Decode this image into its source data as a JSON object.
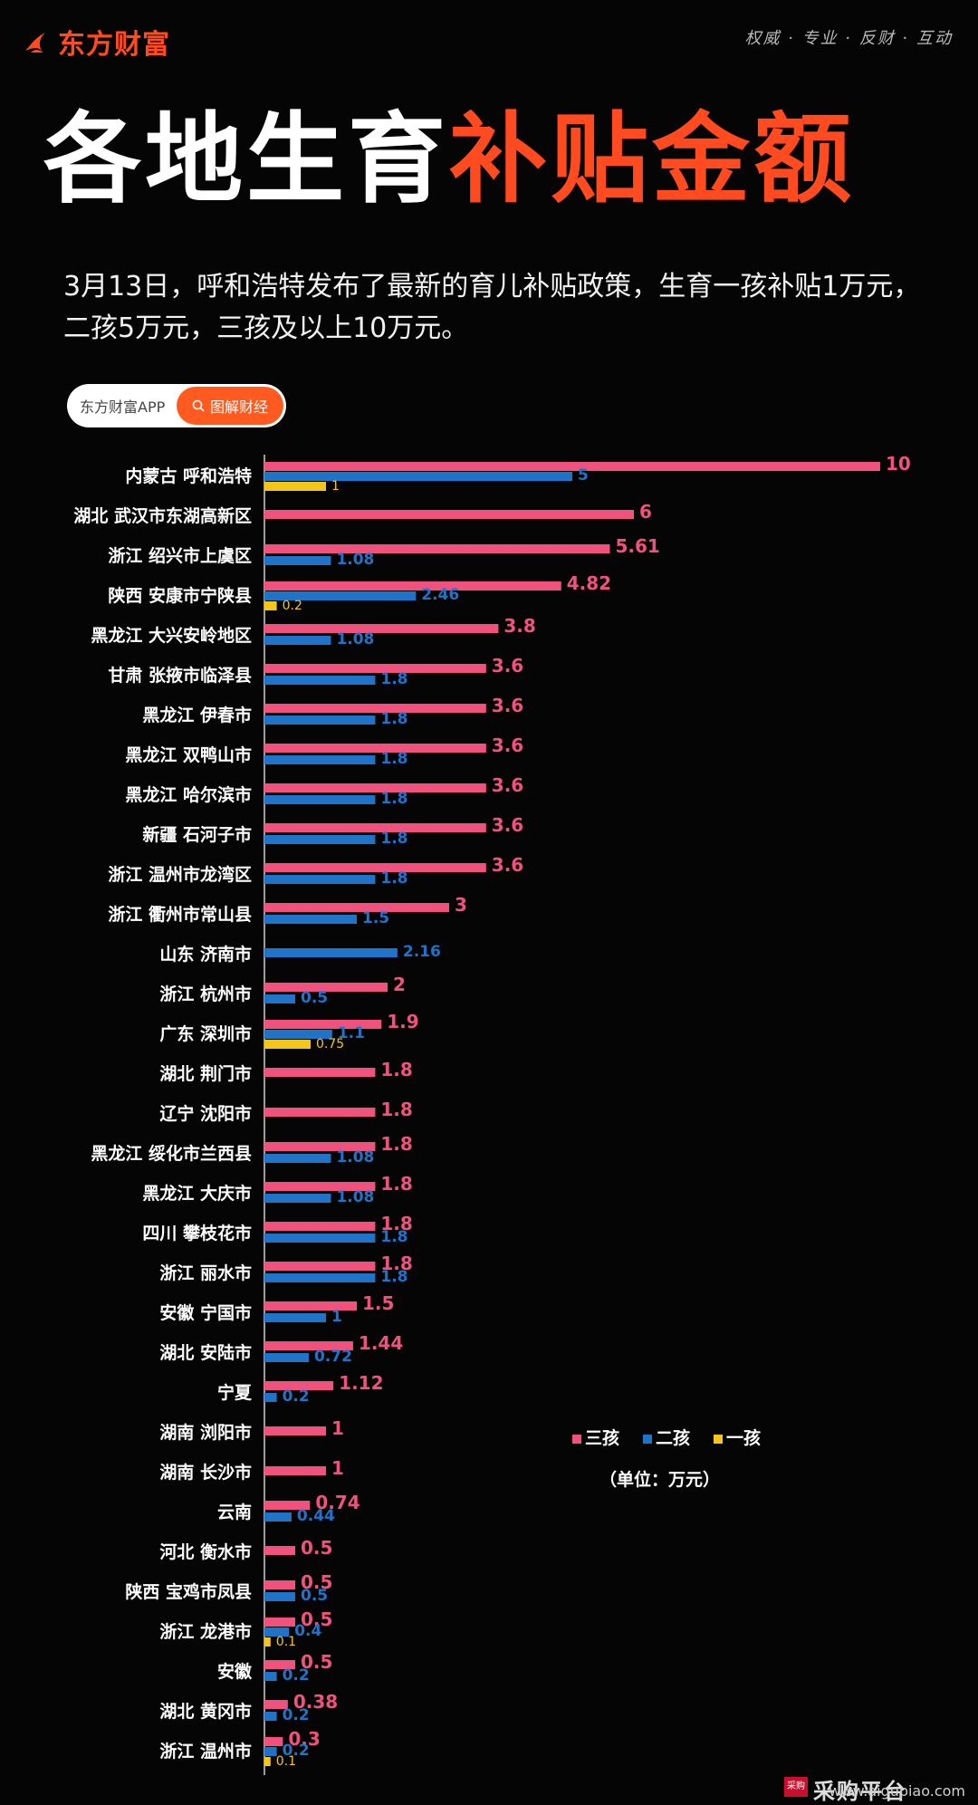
{
  "header": {
    "logo_text": "东方财富",
    "motto": "权威 · 专业 · 反财 · 互动"
  },
  "title": {
    "part1": "各地生育",
    "part2": "补贴金额"
  },
  "description": "3月13日，呼和浩特发布了最新的育儿补贴政策，生育一孩补贴1万元，二孩5万元，三孩及以上10万元。",
  "search": {
    "app_label": "东方财富APP",
    "button_label": "图解财经"
  },
  "colors": {
    "accent": "#ff4b1f",
    "third_child": "#f0527d",
    "second_child": "#1f73c9",
    "first_child": "#f5c518"
  },
  "chart_data": {
    "type": "bar",
    "orientation": "horizontal",
    "unit_note": "（单位：万元）",
    "legend_position": "right",
    "series": [
      {
        "name": "三孩",
        "color": "#f0527d"
      },
      {
        "name": "二孩",
        "color": "#1f73c9"
      },
      {
        "name": "一孩",
        "color": "#f5c518"
      }
    ],
    "categories": [
      "内蒙古 呼和浩特",
      "湖北 武汉市东湖高新区",
      "浙江 绍兴市上虞区",
      "陕西 安康市宁陕县",
      "黑龙江 大兴安岭地区",
      "甘肃 张掖市临泽县",
      "黑龙江 伊春市",
      "黑龙江 双鸭山市",
      "黑龙江 哈尔滨市",
      "新疆 石河子市",
      "浙江 温州市龙湾区",
      "浙江 衢州市常山县",
      "山东 济南市",
      "浙江 杭州市",
      "广东 深圳市",
      "湖北 荆门市",
      "辽宁 沈阳市",
      "黑龙江 绥化市兰西县",
      "黑龙江 大庆市",
      "四川 攀枝花市",
      "浙江 丽水市",
      "安徽 宁国市",
      "湖北 安陆市",
      "宁夏",
      "湖南 浏阳市",
      "湖南 长沙市",
      "云南",
      "河北 衡水市",
      "陕西 宝鸡市凤县",
      "浙江 龙港市",
      "安徽",
      "湖北 黄冈市",
      "浙江 温州市"
    ],
    "rows": [
      {
        "san": 10,
        "er": 5,
        "yi": 1
      },
      {
        "san": 6,
        "er": null,
        "yi": null
      },
      {
        "san": 5.61,
        "er": 1.08,
        "yi": null
      },
      {
        "san": 4.82,
        "er": 2.46,
        "yi": 0.2
      },
      {
        "san": 3.8,
        "er": 1.08,
        "yi": null
      },
      {
        "san": 3.6,
        "er": 1.8,
        "yi": null
      },
      {
        "san": 3.6,
        "er": 1.8,
        "yi": null
      },
      {
        "san": 3.6,
        "er": 1.8,
        "yi": null
      },
      {
        "san": 3.6,
        "er": 1.8,
        "yi": null
      },
      {
        "san": 3.6,
        "er": 1.8,
        "yi": null
      },
      {
        "san": 3.6,
        "er": 1.8,
        "yi": null
      },
      {
        "san": 3,
        "er": 1.5,
        "yi": null
      },
      {
        "san": null,
        "er": 2.16,
        "yi": null
      },
      {
        "san": 2,
        "er": 0.5,
        "yi": null
      },
      {
        "san": 1.9,
        "er": 1.1,
        "yi": 0.75
      },
      {
        "san": 1.8,
        "er": null,
        "yi": null
      },
      {
        "san": 1.8,
        "er": null,
        "yi": null
      },
      {
        "san": 1.8,
        "er": 1.08,
        "yi": null
      },
      {
        "san": 1.8,
        "er": 1.08,
        "yi": null
      },
      {
        "san": 1.8,
        "er": 1.8,
        "yi": null
      },
      {
        "san": 1.8,
        "er": 1.8,
        "yi": null
      },
      {
        "san": 1.5,
        "er": 1,
        "yi": null
      },
      {
        "san": 1.44,
        "er": 0.72,
        "yi": null
      },
      {
        "san": 1.12,
        "er": 0.2,
        "yi": null
      },
      {
        "san": 1,
        "er": null,
        "yi": null
      },
      {
        "san": 1,
        "er": null,
        "yi": null
      },
      {
        "san": 0.74,
        "er": 0.44,
        "yi": null
      },
      {
        "san": 0.5,
        "er": null,
        "yi": null
      },
      {
        "san": 0.5,
        "er": 0.5,
        "yi": null
      },
      {
        "san": 0.5,
        "er": 0.4,
        "yi": 0.1
      },
      {
        "san": 0.5,
        "er": 0.2,
        "yi": null
      },
      {
        "san": 0.38,
        "er": 0.2,
        "yi": null
      },
      {
        "san": 0.3,
        "er": 0.2,
        "yi": 0.1
      }
    ],
    "x_range": [
      0,
      10
    ]
  },
  "footer": {
    "badge": "采购",
    "brand": "采购平台",
    "url": "www.aigupiao.com"
  }
}
